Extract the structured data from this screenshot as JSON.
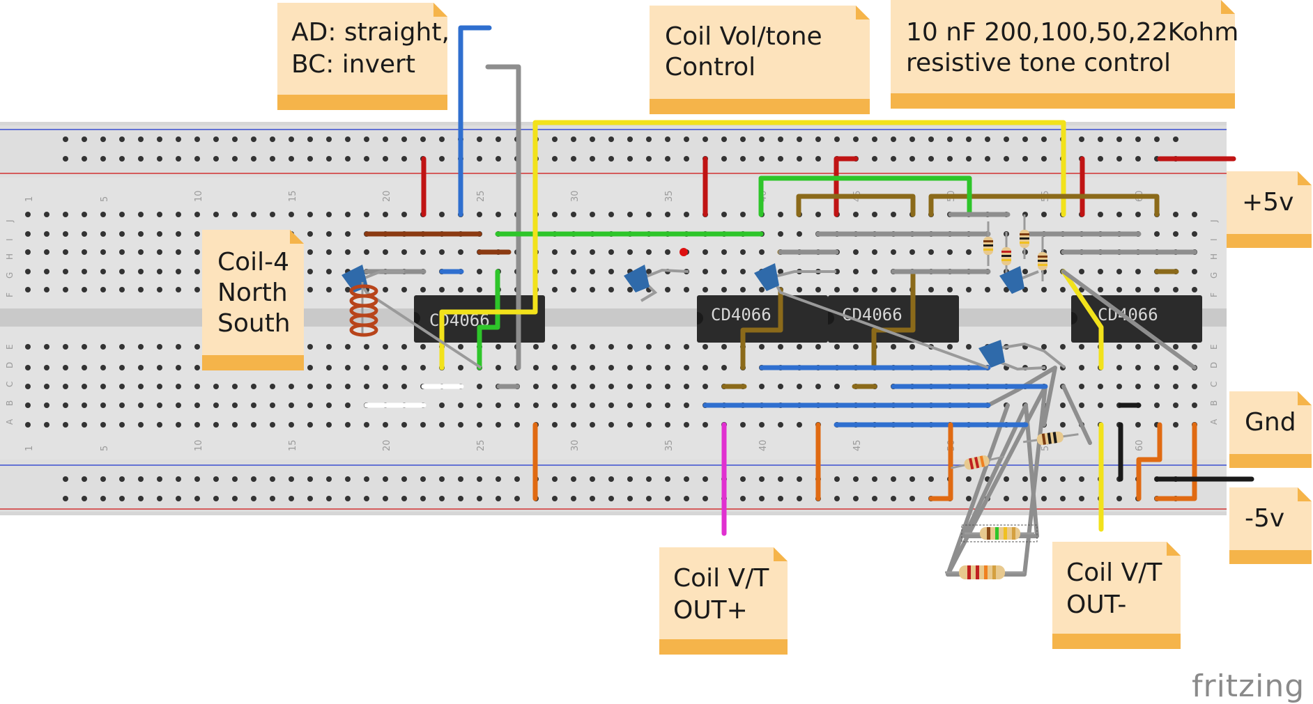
{
  "app": {
    "brand": "fritzing"
  },
  "notes": {
    "ad_bc": [
      "AD: straight,",
      "BC: invert"
    ],
    "coil_vol_tone": [
      "Coil Vol/tone",
      "Control"
    ],
    "tone_control": [
      "10 nF 200,100,50,22Kohm",
      "resistive tone control"
    ],
    "coil_4": [
      "Coil-4",
      "North",
      "South"
    ],
    "plus5": [
      "+5v"
    ],
    "gnd": [
      "Gnd"
    ],
    "minus5": [
      "-5v"
    ],
    "out_plus": [
      "Coil V/T",
      "OUT+"
    ],
    "out_minus": [
      "Coil V/T",
      "OUT-"
    ]
  },
  "breadboard": {
    "column_ticks": [
      "1",
      "5",
      "10",
      "15",
      "20",
      "25",
      "30",
      "35",
      "40",
      "45",
      "50",
      "55",
      "60"
    ],
    "rows_top": [
      "J",
      "I",
      "H",
      "G",
      "F"
    ],
    "rows_bottom": [
      "E",
      "D",
      "C",
      "B",
      "A"
    ]
  },
  "chips": {
    "chip1": "CD4066",
    "chip2": "CD4066",
    "chip3": "CD4066",
    "chip4": "CD4066"
  },
  "colors": {
    "board": "#d9d9d9",
    "note_body": "#fde3bc",
    "note_bar": "#f5b44a",
    "wire_blue": "#2f6fcf",
    "wire_yellow": "#f2e21b",
    "wire_green": "#2ec52a",
    "wire_red": "#c01414",
    "wire_brown": "#8b5a1a",
    "wire_gray": "#8e8e8e",
    "wire_orange": "#e06a12",
    "wire_magenta": "#e030d0",
    "wire_black": "#1a1a1a"
  }
}
